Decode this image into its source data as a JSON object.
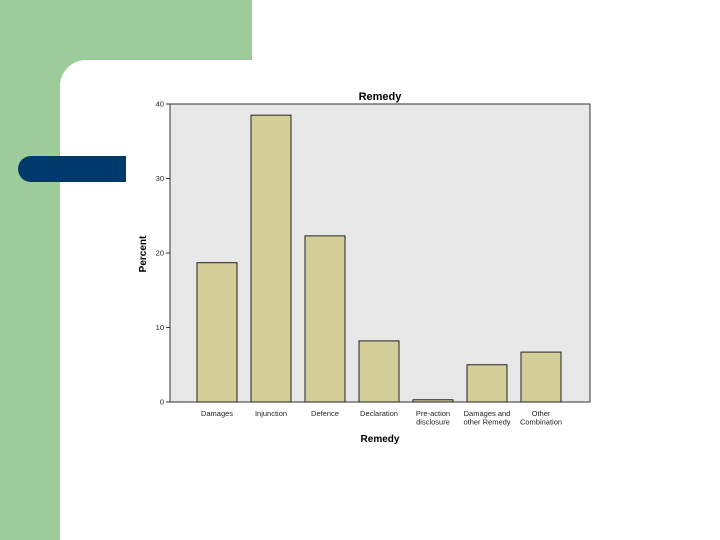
{
  "colors": {
    "slide_green": "#9ccc9a",
    "slide_blue": "#003a6b",
    "bar_fill": "#d4cf99",
    "plot_bg": "#e8e8e8"
  },
  "chart_data": {
    "type": "bar",
    "title": "Remedy",
    "xlabel": "Remedy",
    "ylabel": "Percent",
    "ylim": [
      0,
      40
    ],
    "yticks": [
      {
        "value": 0,
        "label": "0"
      },
      {
        "value": 10,
        "label": "10"
      },
      {
        "value": 20,
        "label": "20"
      },
      {
        "value": 30,
        "label": "30"
      },
      {
        "value": 40,
        "label": "40"
      }
    ],
    "categories": [
      [
        "Damages"
      ],
      [
        "Injunction"
      ],
      [
        "Defence"
      ],
      [
        "Declaration"
      ],
      [
        "Pre-action",
        "disclosure"
      ],
      [
        "Damages and",
        "other Remedy"
      ],
      [
        "Other",
        "Combination"
      ]
    ],
    "values": [
      18.7,
      38.5,
      22.3,
      8.2,
      0.3,
      5.0,
      6.7
    ],
    "grid": false,
    "legend": "none"
  }
}
